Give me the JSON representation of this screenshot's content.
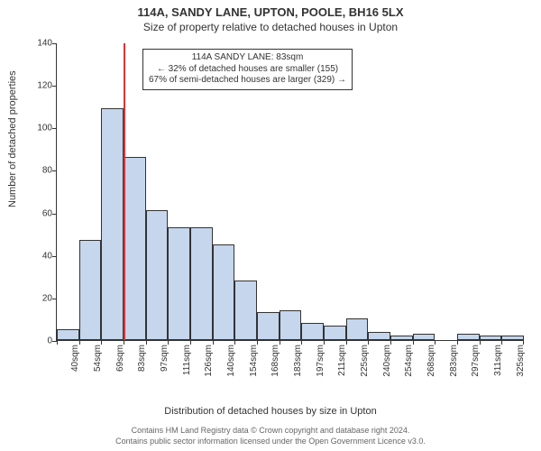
{
  "title_line1": "114A, SANDY LANE, UPTON, POOLE, BH16 5LX",
  "title_line2": "Size of property relative to detached houses in Upton",
  "y_axis_label": "Number of detached properties",
  "x_axis_label": "Distribution of detached houses by size in Upton",
  "footer_line1": "Contains HM Land Registry data © Crown copyright and database right 2024.",
  "footer_line2": "Contains public sector information licensed under the Open Government Licence v3.0.",
  "chart": {
    "type": "histogram",
    "ylim_max": 140,
    "y_ticks": [
      0,
      20,
      40,
      60,
      80,
      100,
      120,
      140
    ],
    "bar_fill_color": "#c5d6ed",
    "bar_border_color": "#333333",
    "background_color": "#ffffff",
    "categories": [
      "40sqm",
      "54sqm",
      "69sqm",
      "83sqm",
      "97sqm",
      "111sqm",
      "126sqm",
      "140sqm",
      "154sqm",
      "168sqm",
      "183sqm",
      "197sqm",
      "211sqm",
      "225sqm",
      "240sqm",
      "254sqm",
      "268sqm",
      "283sqm",
      "297sqm",
      "311sqm",
      "325sqm"
    ],
    "values": [
      5,
      47,
      109,
      86,
      61,
      53,
      53,
      45,
      28,
      13,
      14,
      8,
      7,
      10,
      4,
      2,
      3,
      0,
      3,
      2,
      2
    ],
    "reference_line": {
      "position_index_right_edge_of_category": 3,
      "color": "#dd3333"
    },
    "annotation": {
      "line1": "114A SANDY LANE: 83sqm",
      "line2": "← 32% of detached houses are smaller (155)",
      "line3": "67% of semi-detached houses are larger (329) →"
    }
  }
}
